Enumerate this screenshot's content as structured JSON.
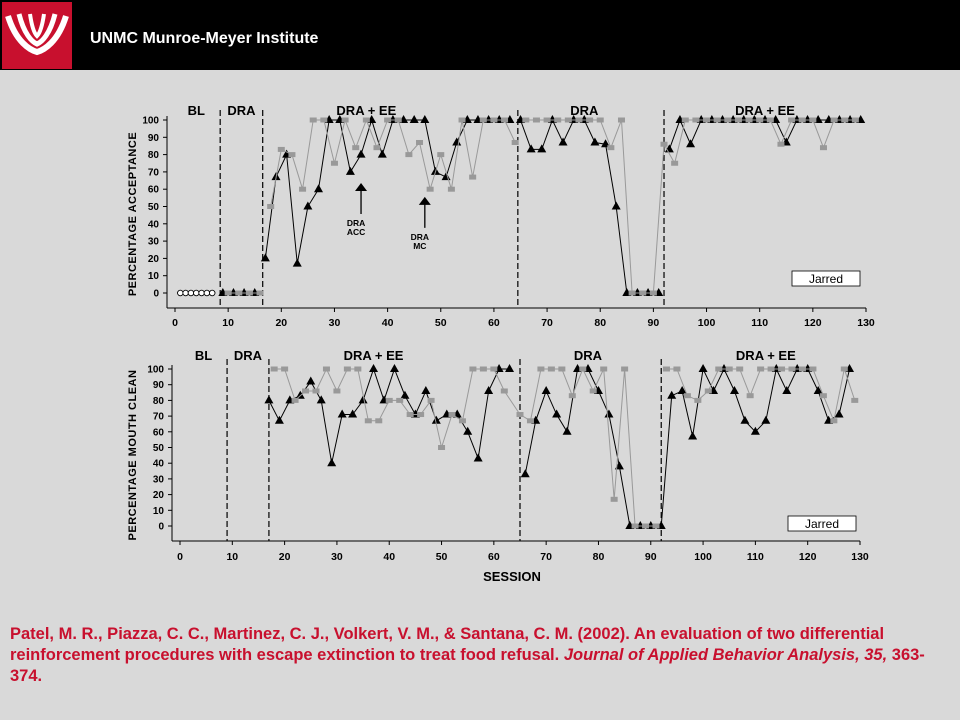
{
  "header": {
    "title": "UNMC Munroe-Meyer Institute"
  },
  "citation": {
    "authors": "Patel, M. R., Piazza, C. C., Martinez, C. J., Volkert, V. M., & Santana, C. M. (2002). An evaluation of two differential reinforcement procedures with escape extinction to treat food refusal.",
    "journal": "Journal of Applied Behavior Analysis, 35,",
    "pages": "363-374."
  },
  "colors": {
    "accent": "#c8102e",
    "series_dra": "#000000",
    "series_ee": "#999999"
  },
  "chart_data": [
    {
      "type": "line",
      "ylabel": "PERCENTAGE ACCEPTANCE",
      "xlabel": "",
      "xlim": [
        0,
        130
      ],
      "ylim": [
        0,
        100
      ],
      "xticks": [
        0,
        10,
        20,
        30,
        40,
        50,
        60,
        70,
        80,
        90,
        100,
        110,
        120,
        130
      ],
      "yticks": [
        0,
        10,
        20,
        30,
        40,
        50,
        60,
        70,
        80,
        90,
        100
      ],
      "legend_box": "Jarred",
      "phase_lines": [
        8.5,
        16.5,
        64.5,
        92
      ],
      "phase_labels": [
        {
          "text": "BL",
          "x": 4
        },
        {
          "text": "DRA",
          "x": 12.5
        },
        {
          "text": "DRA + EE",
          "x": 36
        },
        {
          "text": "DRA",
          "x": 77
        },
        {
          "text": "DRA + EE",
          "x": 111
        }
      ],
      "annotations": [
        {
          "lines": [
            "DRA",
            "ACC"
          ],
          "x": 35,
          "y": 63
        },
        {
          "lines": [
            "DRA",
            "MC"
          ],
          "x": 47,
          "y": 55
        }
      ],
      "series": [
        {
          "marker": "circle",
          "x": [
            1,
            2,
            3,
            4,
            5,
            6,
            7
          ],
          "values": [
            0,
            0,
            0,
            0,
            0,
            0,
            0
          ]
        },
        {
          "marker": "triangle",
          "x": [
            9,
            11,
            13,
            15,
            17,
            19,
            21,
            23,
            25,
            27,
            29,
            31,
            33,
            35,
            37,
            39,
            41,
            43,
            45,
            47,
            49,
            51,
            53,
            55,
            57,
            59,
            61,
            63,
            65,
            67,
            69,
            71,
            73,
            75,
            77,
            79,
            81,
            83,
            85,
            87,
            89,
            91,
            93,
            95,
            97,
            99,
            101,
            103,
            105,
            107,
            109,
            111,
            113,
            115,
            117,
            119,
            121,
            123,
            125,
            127,
            129
          ],
          "values": [
            0,
            0,
            0,
            0,
            20,
            67,
            80,
            17,
            50,
            60,
            100,
            100,
            70,
            80,
            100,
            80,
            100,
            100,
            100,
            100,
            70,
            67,
            87,
            100,
            100,
            100,
            100,
            100,
            100,
            83,
            83,
            100,
            87,
            100,
            100,
            87,
            86,
            50,
            0,
            0,
            0,
            0,
            83,
            100,
            86,
            100,
            100,
            100,
            100,
            100,
            100,
            100,
            100,
            87,
            100,
            100,
            100,
            100,
            100,
            100,
            100
          ]
        },
        {
          "marker": "square",
          "x": [
            10,
            12,
            14,
            16,
            18,
            20,
            22,
            24,
            26,
            28,
            30,
            32,
            34,
            36,
            38,
            40,
            42,
            44,
            46,
            48,
            50,
            52,
            54,
            56,
            58,
            60,
            62,
            64,
            66,
            68,
            70,
            72,
            74,
            76,
            78,
            80,
            82,
            84,
            86,
            88,
            90,
            92,
            94,
            96,
            98,
            100,
            102,
            104,
            106,
            108,
            110,
            112,
            114,
            116,
            118,
            120,
            122,
            124,
            126,
            128
          ],
          "values": [
            0,
            0,
            0,
            0,
            50,
            83,
            80,
            60,
            100,
            100,
            75,
            100,
            84,
            100,
            84,
            100,
            100,
            80,
            87,
            60,
            80,
            60,
            100,
            67,
            100,
            100,
            100,
            87,
            100,
            100,
            100,
            100,
            100,
            100,
            100,
            100,
            84,
            100,
            0,
            0,
            0,
            86,
            75,
            100,
            100,
            100,
            100,
            100,
            100,
            100,
            100,
            100,
            86,
            100,
            100,
            100,
            84,
            100,
            100,
            100
          ]
        }
      ]
    },
    {
      "type": "line",
      "ylabel": "PERCENTAGE MOUTH CLEAN",
      "xlabel": "SESSION",
      "xlim": [
        0,
        130
      ],
      "ylim": [
        0,
        100
      ],
      "xticks": [
        0,
        10,
        20,
        30,
        40,
        50,
        60,
        70,
        80,
        90,
        100,
        110,
        120,
        130
      ],
      "yticks": [
        0,
        10,
        20,
        30,
        40,
        50,
        60,
        70,
        80,
        90,
        100
      ],
      "legend_box": "Jarred",
      "phase_lines": [
        9,
        17,
        65,
        92
      ],
      "phase_labels": [
        {
          "text": "BL",
          "x": 4.5
        },
        {
          "text": "DRA",
          "x": 13
        },
        {
          "text": "DRA + EE",
          "x": 37
        },
        {
          "text": "DRA",
          "x": 78
        },
        {
          "text": "DRA + EE",
          "x": 112
        }
      ],
      "annotations": [],
      "series": [
        {
          "marker": "triangle",
          "x": [
            17,
            19,
            21,
            23,
            25,
            27,
            29,
            31,
            33,
            35,
            37,
            39,
            41,
            43,
            45,
            47,
            49,
            51,
            53,
            55,
            57,
            59,
            61,
            63,
            66,
            68,
            70,
            72,
            74,
            76,
            78,
            80,
            82,
            84,
            86,
            88,
            90,
            92,
            94,
            96,
            98,
            100,
            102,
            104,
            106,
            108,
            110,
            112,
            114,
            116,
            118,
            120,
            122,
            124,
            126,
            128
          ],
          "values": [
            80,
            67,
            80,
            83,
            92,
            80,
            40,
            71,
            71,
            80,
            100,
            80,
            100,
            83,
            71,
            86,
            67,
            71,
            71,
            60,
            43,
            86,
            100,
            100,
            33,
            67,
            86,
            71,
            60,
            100,
            100,
            86,
            71,
            38,
            0,
            0,
            0,
            0,
            83,
            86,
            57,
            100,
            86,
            100,
            86,
            67,
            60,
            67,
            100,
            86,
            100,
            100,
            86,
            67,
            71,
            100
          ]
        },
        {
          "marker": "square",
          "x": [
            18,
            20,
            22,
            24,
            26,
            28,
            30,
            32,
            34,
            36,
            38,
            40,
            42,
            44,
            46,
            48,
            50,
            52,
            54,
            56,
            58,
            60,
            62,
            65,
            67,
            69,
            71,
            73,
            75,
            77,
            79,
            81,
            83,
            85,
            87,
            89,
            91,
            93,
            95,
            97,
            99,
            101,
            103,
            105,
            107,
            109,
            111,
            113,
            115,
            117,
            119,
            121,
            123,
            125,
            127,
            129
          ],
          "values": [
            100,
            100,
            80,
            86,
            86,
            100,
            86,
            100,
            100,
            67,
            67,
            80,
            80,
            71,
            71,
            80,
            50,
            71,
            67,
            100,
            100,
            100,
            86,
            71,
            67,
            100,
            100,
            100,
            83,
            100,
            86,
            100,
            17,
            100,
            0,
            0,
            0,
            100,
            100,
            83,
            80,
            86,
            100,
            100,
            100,
            83,
            100,
            100,
            100,
            100,
            100,
            100,
            83,
            67,
            100,
            80
          ]
        }
      ]
    }
  ]
}
